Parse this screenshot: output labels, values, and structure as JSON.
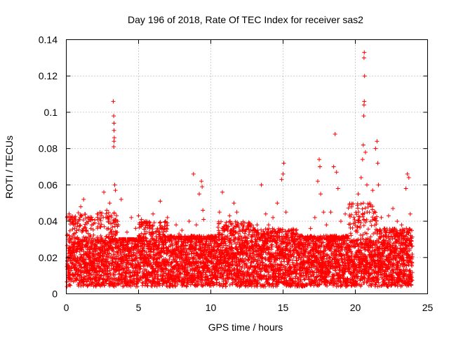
{
  "chart_data": {
    "type": "scatter",
    "title": "Day 196 of 2018, Rate Of TEC Index for receiver sas2",
    "xlabel": "GPS time / hours",
    "ylabel": "ROTI / TECUs",
    "xlim": [
      0,
      25
    ],
    "ylim": [
      0,
      0.14
    ],
    "x_ticks": [
      0,
      5,
      10,
      15,
      20,
      25
    ],
    "x_tick_labels": [
      "0",
      "5",
      "10",
      "15",
      "20",
      "25"
    ],
    "y_ticks": [
      0,
      0.02,
      0.04,
      0.06,
      0.08,
      0.1,
      0.12,
      0.14
    ],
    "y_tick_labels": [
      "0",
      "0.02",
      "0.04",
      "0.06",
      "0.08",
      "0.1",
      "0.12",
      "0.14"
    ],
    "grid": true,
    "marker": "+",
    "marker_color": "#ff0000",
    "series": [
      {
        "name": "ROTI",
        "points": [
          [
            0.1,
            0.015
          ],
          [
            0.2,
            0.032
          ],
          [
            0.3,
            0.025
          ],
          [
            0.5,
            0.038
          ],
          [
            0.7,
            0.012
          ],
          [
            0.9,
            0.028
          ],
          [
            1.0,
            0.048
          ],
          [
            1.2,
            0.052
          ],
          [
            1.4,
            0.035
          ],
          [
            1.6,
            0.022
          ],
          [
            1.8,
            0.041
          ],
          [
            2.0,
            0.018
          ],
          [
            2.2,
            0.044
          ],
          [
            2.4,
            0.03
          ],
          [
            2.6,
            0.056
          ],
          [
            2.8,
            0.046
          ],
          [
            3.0,
            0.05
          ],
          [
            3.25,
            0.106
          ],
          [
            3.28,
            0.098
          ],
          [
            3.3,
            0.094
          ],
          [
            3.3,
            0.09
          ],
          [
            3.32,
            0.086
          ],
          [
            3.3,
            0.084
          ],
          [
            3.28,
            0.081
          ],
          [
            3.35,
            0.06
          ],
          [
            3.4,
            0.057
          ],
          [
            3.6,
            0.038
          ],
          [
            3.8,
            0.052
          ],
          [
            4.0,
            0.025
          ],
          [
            4.2,
            0.034
          ],
          [
            4.5,
            0.042
          ],
          [
            4.8,
            0.036
          ],
          [
            5.0,
            0.043
          ],
          [
            5.2,
            0.041
          ],
          [
            5.5,
            0.04
          ],
          [
            5.8,
            0.038
          ],
          [
            6.0,
            0.044
          ],
          [
            6.3,
            0.036
          ],
          [
            6.5,
            0.051
          ],
          [
            6.8,
            0.032
          ],
          [
            7.0,
            0.042
          ],
          [
            7.3,
            0.031
          ],
          [
            7.6,
            0.038
          ],
          [
            7.8,
            0.033
          ],
          [
            8.0,
            0.035
          ],
          [
            8.2,
            0.025
          ],
          [
            8.5,
            0.04
          ],
          [
            8.8,
            0.066
          ],
          [
            9.0,
            0.038
          ],
          [
            9.2,
            0.055
          ],
          [
            9.35,
            0.062
          ],
          [
            9.4,
            0.059
          ],
          [
            9.45,
            0.046
          ],
          [
            9.5,
            0.041
          ],
          [
            9.7,
            0.03
          ],
          [
            10.0,
            0.022
          ],
          [
            10.3,
            0.028
          ],
          [
            10.6,
            0.045
          ],
          [
            10.8,
            0.056
          ],
          [
            11.0,
            0.038
          ],
          [
            11.3,
            0.043
          ],
          [
            11.6,
            0.05
          ],
          [
            11.8,
            0.045
          ],
          [
            12.0,
            0.035
          ],
          [
            12.3,
            0.031
          ],
          [
            12.6,
            0.028
          ],
          [
            12.9,
            0.035
          ],
          [
            13.2,
            0.038
          ],
          [
            13.5,
            0.06
          ],
          [
            13.8,
            0.044
          ],
          [
            14.0,
            0.038
          ],
          [
            14.3,
            0.042
          ],
          [
            14.6,
            0.05
          ],
          [
            14.9,
            0.063
          ],
          [
            15.0,
            0.066
          ],
          [
            15.05,
            0.072
          ],
          [
            15.2,
            0.045
          ],
          [
            15.4,
            0.035
          ],
          [
            15.7,
            0.03
          ],
          [
            16.0,
            0.027
          ],
          [
            16.3,
            0.032
          ],
          [
            16.6,
            0.03
          ],
          [
            16.9,
            0.036
          ],
          [
            17.2,
            0.042
          ],
          [
            17.4,
            0.062
          ],
          [
            17.5,
            0.074
          ],
          [
            17.55,
            0.07
          ],
          [
            17.6,
            0.055
          ],
          [
            17.8,
            0.045
          ],
          [
            18.0,
            0.038
          ],
          [
            18.3,
            0.045
          ],
          [
            18.5,
            0.07
          ],
          [
            18.6,
            0.088
          ],
          [
            18.7,
            0.067
          ],
          [
            18.8,
            0.058
          ],
          [
            19.0,
            0.04
          ],
          [
            19.3,
            0.044
          ],
          [
            19.6,
            0.049
          ],
          [
            19.9,
            0.042
          ],
          [
            20.2,
            0.055
          ],
          [
            20.4,
            0.064
          ],
          [
            20.5,
            0.074
          ],
          [
            20.55,
            0.082
          ],
          [
            20.58,
            0.098
          ],
          [
            20.6,
            0.104
          ],
          [
            20.62,
            0.106
          ],
          [
            20.64,
            0.12
          ],
          [
            20.6,
            0.13
          ],
          [
            20.62,
            0.133
          ],
          [
            20.7,
            0.078
          ],
          [
            20.8,
            0.06
          ],
          [
            21.0,
            0.05
          ],
          [
            21.2,
            0.057
          ],
          [
            21.4,
            0.08
          ],
          [
            21.5,
            0.084
          ],
          [
            21.55,
            0.072
          ],
          [
            21.6,
            0.06
          ],
          [
            21.8,
            0.042
          ],
          [
            22.0,
            0.036
          ],
          [
            22.3,
            0.043
          ],
          [
            22.6,
            0.047
          ],
          [
            22.9,
            0.04
          ],
          [
            23.2,
            0.038
          ],
          [
            23.5,
            0.058
          ],
          [
            23.6,
            0.066
          ],
          [
            23.7,
            0.064
          ],
          [
            23.8,
            0.044
          ],
          [
            23.9,
            0.02
          ]
        ]
      }
    ],
    "band": {
      "note": "dense cloud of markers between hour 0 and 24",
      "x_range": [
        0.05,
        23.95
      ],
      "base_level": [
        0.004,
        0.03
      ],
      "segments": [
        {
          "x_start": 0.0,
          "x_end": 3.6,
          "upper": 0.045
        },
        {
          "x_start": 3.6,
          "x_end": 5.0,
          "upper": 0.03
        },
        {
          "x_start": 5.0,
          "x_end": 7.0,
          "upper": 0.04
        },
        {
          "x_start": 7.0,
          "x_end": 10.5,
          "upper": 0.032
        },
        {
          "x_start": 10.5,
          "x_end": 13.0,
          "upper": 0.04
        },
        {
          "x_start": 13.0,
          "x_end": 16.0,
          "upper": 0.036
        },
        {
          "x_start": 16.0,
          "x_end": 19.5,
          "upper": 0.032
        },
        {
          "x_start": 19.5,
          "x_end": 21.5,
          "upper": 0.05
        },
        {
          "x_start": 21.5,
          "x_end": 24.0,
          "upper": 0.036
        }
      ]
    }
  }
}
